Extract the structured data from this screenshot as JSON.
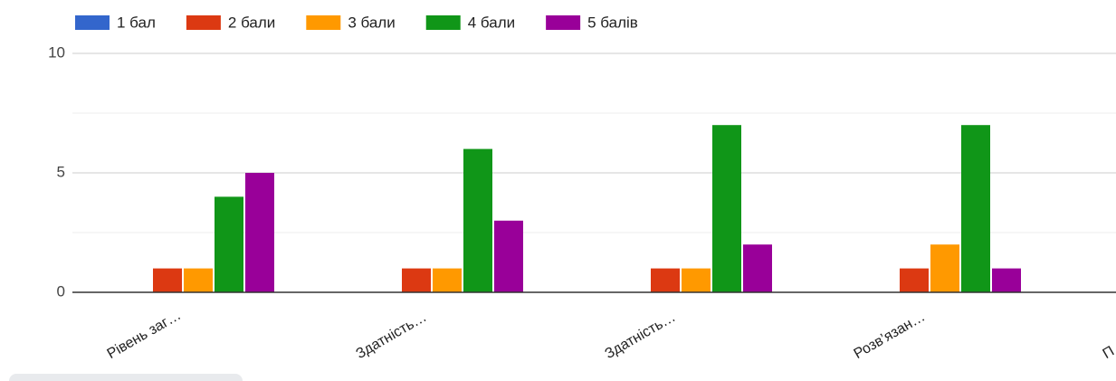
{
  "chart_data": {
    "type": "bar",
    "categories": [
      "Рівень заг…",
      "Здатність…",
      "Здатність…",
      "Розв’язан…",
      "П"
    ],
    "series": [
      {
        "name": "1 бал",
        "color": "#3366cc",
        "values": [
          0,
          0,
          0,
          0,
          null
        ]
      },
      {
        "name": "2 бали",
        "color": "#dc3912",
        "values": [
          1,
          1,
          1,
          1,
          null
        ]
      },
      {
        "name": "3 бали",
        "color": "#ff9900",
        "values": [
          1,
          1,
          1,
          2,
          null
        ]
      },
      {
        "name": "4 бали",
        "color": "#109618",
        "values": [
          4,
          6,
          7,
          7,
          null
        ]
      },
      {
        "name": "5 балів",
        "color": "#990099",
        "values": [
          5,
          3,
          2,
          1,
          null
        ]
      }
    ],
    "ylim": [
      0,
      10
    ],
    "yticks": [
      0,
      5,
      10
    ],
    "minor_yticks": [
      2.5,
      7.5
    ],
    "grid": true,
    "legend": "top"
  }
}
